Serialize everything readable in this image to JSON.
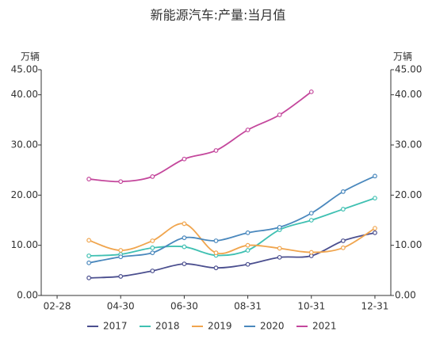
{
  "chart_data": {
    "type": "line",
    "title": "新能源汽车:产量:当月值",
    "ylabel": "万辆",
    "y2label": "万辆",
    "categories": [
      "02-28",
      null,
      "04-30",
      null,
      "06-30",
      null,
      "08-31",
      null,
      "10-31",
      null,
      "12-31"
    ],
    "series": [
      {
        "name": "2017",
        "color": "#4b4f8f",
        "values": [
          null,
          3.5,
          3.8,
          4.9,
          6.3,
          5.5,
          6.2,
          7.6,
          7.9,
          10.9,
          12.5
        ]
      },
      {
        "name": "2018",
        "color": "#3fc0b2",
        "values": [
          null,
          7.9,
          8.2,
          9.5,
          9.7,
          8.0,
          9.0,
          13.1,
          15.0,
          17.2,
          19.4
        ]
      },
      {
        "name": "2019",
        "color": "#f0a54e",
        "values": [
          null,
          11.0,
          9.0,
          10.9,
          14.3,
          8.5,
          10.0,
          9.4,
          8.6,
          9.5,
          13.4
        ]
      },
      {
        "name": "2020",
        "color": "#4a88bd",
        "values": [
          null,
          6.5,
          7.7,
          8.5,
          11.5,
          10.9,
          12.5,
          13.6,
          16.4,
          20.7,
          23.8
        ]
      },
      {
        "name": "2021",
        "color": "#c4479c",
        "values": [
          null,
          23.2,
          22.7,
          23.7,
          27.2,
          28.9,
          33.0,
          36.0,
          40.6,
          null,
          null
        ]
      }
    ],
    "ylim": [
      0,
      45
    ],
    "yticks": [
      {
        "value": 0,
        "label": "0.00"
      },
      {
        "value": 10,
        "label": "10.00"
      },
      {
        "value": 20,
        "label": "20.00"
      },
      {
        "value": 30,
        "label": "30.00"
      },
      {
        "value": 40,
        "label": "40.00"
      },
      {
        "value": 45,
        "label": "45.00"
      }
    ],
    "grid": false
  }
}
